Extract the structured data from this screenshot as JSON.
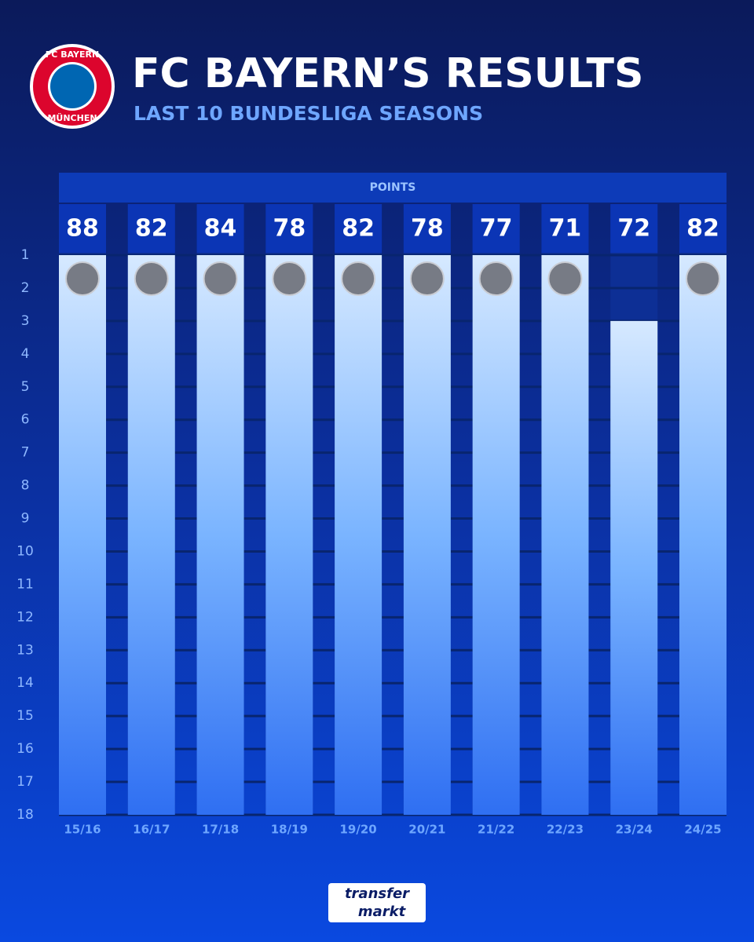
{
  "chart_data": {
    "type": "bar",
    "title": "FC BAYERN’S RESULTS",
    "subtitle": "LAST 10 BUNDESLIGA SEASONS",
    "points_header": "POINTS",
    "categories": [
      "15/16",
      "16/17",
      "17/18",
      "18/19",
      "19/20",
      "20/21",
      "21/22",
      "22/23",
      "23/24",
      "24/25"
    ],
    "values": [
      1,
      1,
      1,
      1,
      1,
      1,
      1,
      1,
      3,
      1
    ],
    "points": [
      88,
      82,
      84,
      78,
      82,
      78,
      77,
      71,
      72,
      82
    ],
    "ylim": [
      18,
      1
    ],
    "yticks": [
      1,
      2,
      3,
      4,
      5,
      6,
      7,
      8,
      9,
      10,
      11,
      12,
      13,
      14,
      15,
      16,
      17,
      18
    ],
    "grid": true,
    "logo": {
      "top": "FC BAYERN",
      "bottom": "MÜNCHEN"
    },
    "brand": {
      "line1": "transfer",
      "line2": "markt"
    }
  }
}
